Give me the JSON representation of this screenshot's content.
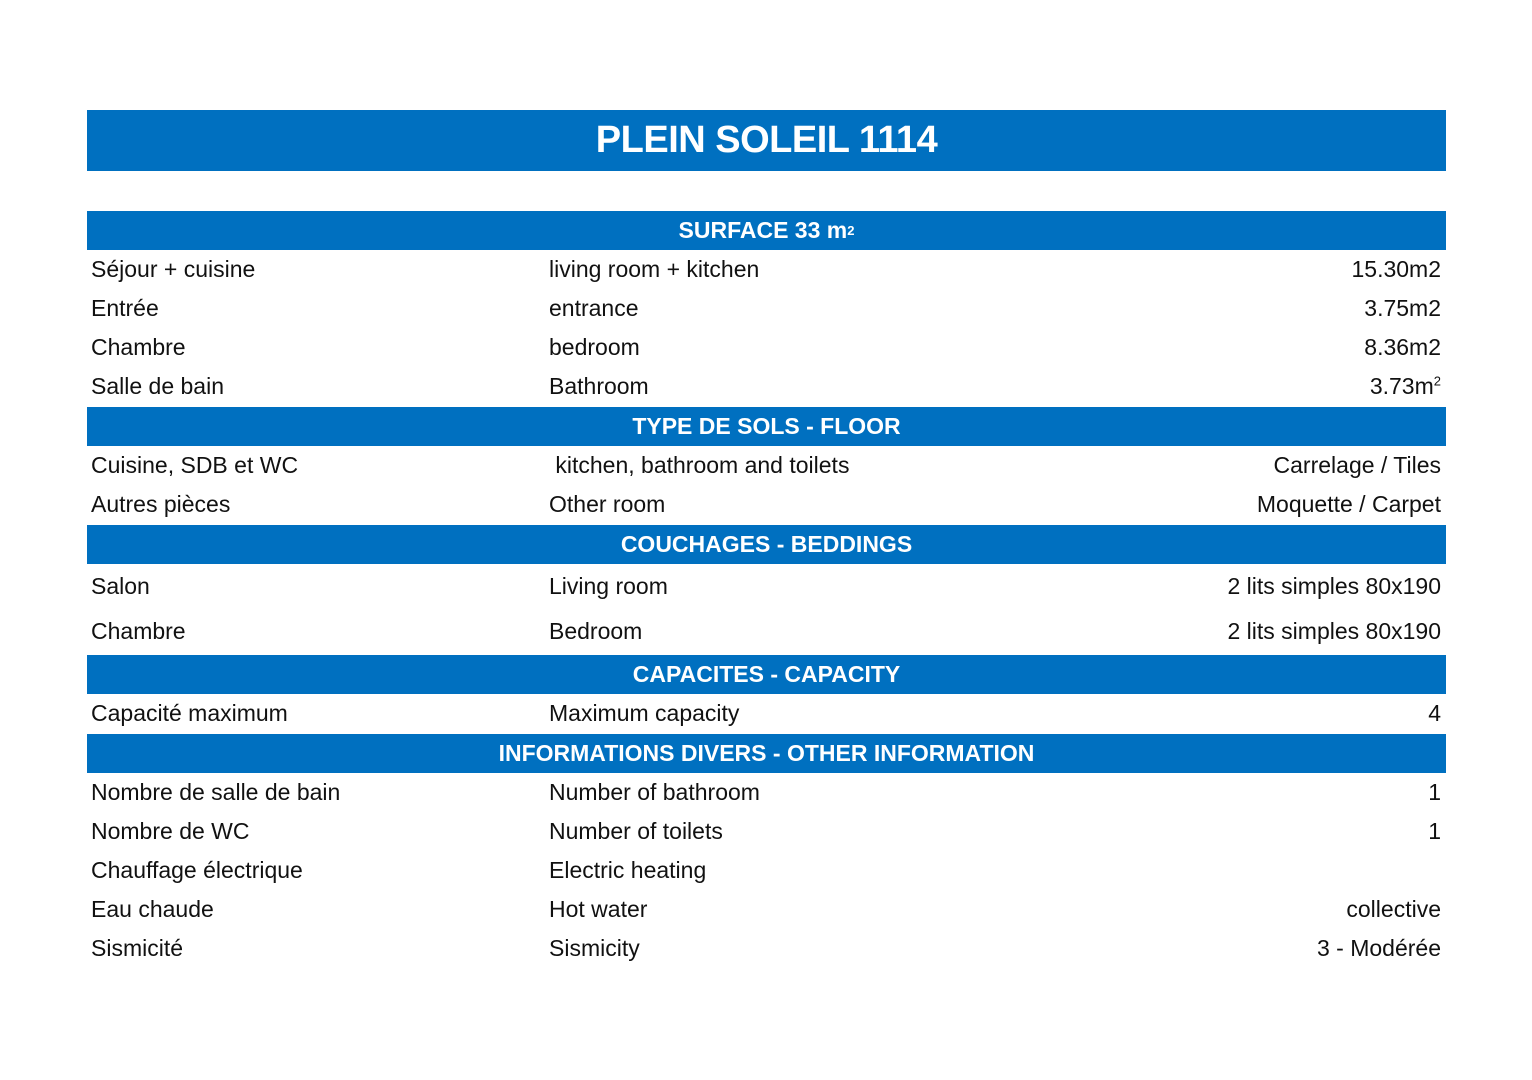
{
  "title": "PLEIN SOLEIL 1114",
  "accent_color": "#0070C0",
  "sections": [
    {
      "header": "SURFACE 33 m",
      "header_sup": "2",
      "rows": [
        {
          "fr": "Séjour + cuisine",
          "en": "living room + kitchen",
          "value": "15.30m2"
        },
        {
          "fr": "Entrée",
          "en": "entrance",
          "value": "3.75m2"
        },
        {
          "fr": "Chambre",
          "en": "bedroom",
          "value": "8.36m2"
        },
        {
          "fr": "Salle de bain",
          "en": "Bathroom",
          "value": "3.73m",
          "value_sup": "2"
        }
      ]
    },
    {
      "header": "TYPE DE SOLS - FLOOR",
      "rows": [
        {
          "fr": "Cuisine, SDB et WC",
          "en": " kitchen, bathroom and toilets",
          "value": "Carrelage / Tiles"
        },
        {
          "fr": "Autres pièces",
          "en": "Other room",
          "value": "Moquette / Carpet"
        }
      ]
    },
    {
      "header": "COUCHAGES - BEDDINGS",
      "tall": true,
      "rows": [
        {
          "fr": "Salon",
          "en": "Living room",
          "value": "2 lits simples 80x190"
        },
        {
          "fr": "Chambre",
          "en": "Bedroom",
          "value": "2 lits simples 80x190"
        }
      ]
    },
    {
      "header": "CAPACITES - CAPACITY",
      "rows": [
        {
          "fr": "Capacité maximum",
          "en": "Maximum capacity",
          "value": "4"
        }
      ]
    },
    {
      "header": "INFORMATIONS DIVERS - OTHER INFORMATION",
      "rows": [
        {
          "fr": "Nombre de salle de bain",
          "en": "Number of bathroom",
          "value": "1"
        },
        {
          "fr": "Nombre de WC",
          "en": "Number of toilets",
          "value": "1"
        },
        {
          "fr": "Chauffage électrique",
          "en": "Electric heating",
          "value": ""
        },
        {
          "fr": "Eau chaude",
          "en": "Hot water",
          "value": "collective"
        },
        {
          "fr": "Sismicité",
          "en": "Sismicity",
          "value": "3 - Modérée"
        }
      ]
    }
  ]
}
